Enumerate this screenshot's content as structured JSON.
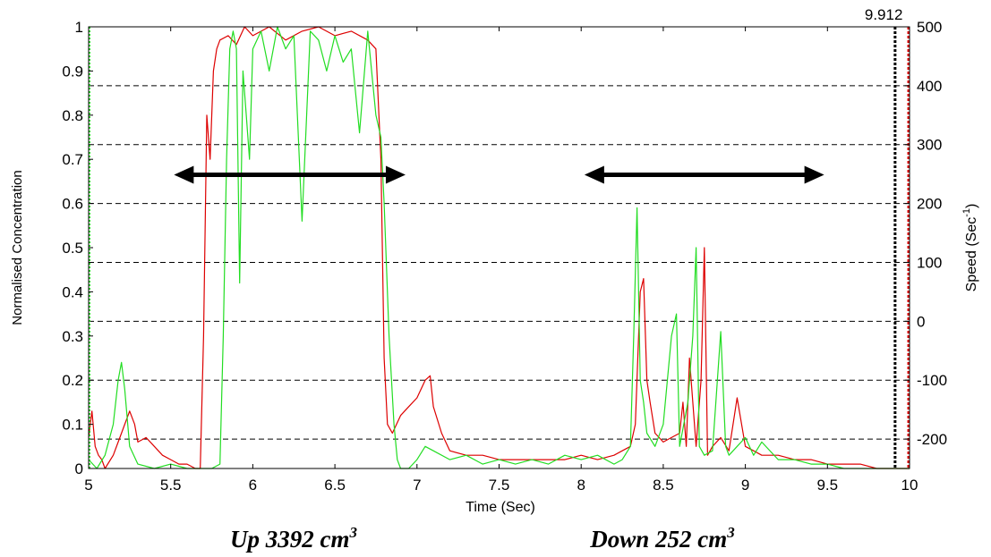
{
  "chart_data": {
    "type": "line",
    "xlabel": "Time (Sec)",
    "ylabel": "Normalised Concentration",
    "y2label": "Speed (Sec",
    "y2label_sup": "-1",
    "y2label_close": ")",
    "xlim": [
      5,
      10
    ],
    "ylim": [
      0,
      1
    ],
    "y2lim": [
      -250,
      500
    ],
    "grid": "horizontal dashed at right-axis ticks",
    "xticks": [
      "5",
      "5.5",
      "6",
      "6.5",
      "7",
      "7.5",
      "8",
      "8.5",
      "9",
      "9.5",
      "10"
    ],
    "yticks": [
      "0",
      "0.1",
      "0.2",
      "0.3",
      "0.4",
      "0.5",
      "0.6",
      "0.7",
      "0.8",
      "0.9",
      "1"
    ],
    "y2ticks": [
      "-200",
      "-100",
      "0",
      "100",
      "200",
      "300",
      "400",
      "500"
    ],
    "marker": {
      "x": 9.912,
      "label": "9.912"
    },
    "colors": {
      "series_red": "#dd0000",
      "series_green": "#22dd22",
      "marker": "#000000",
      "right_edge": "#dd0000"
    },
    "series": [
      {
        "color": "red",
        "x": [
          5.0,
          5.02,
          5.04,
          5.06,
          5.08,
          5.1,
          5.15,
          5.2,
          5.25,
          5.28,
          5.3,
          5.35,
          5.4,
          5.45,
          5.5,
          5.55,
          5.6,
          5.65,
          5.68,
          5.7,
          5.72,
          5.74,
          5.76,
          5.78,
          5.8,
          5.85,
          5.9,
          5.95,
          6.0,
          6.1,
          6.2,
          6.3,
          6.4,
          6.5,
          6.6,
          6.7,
          6.75,
          6.78,
          6.8,
          6.82,
          6.85,
          6.9,
          6.95,
          7.0,
          7.05,
          7.08,
          7.1,
          7.15,
          7.2,
          7.3,
          7.4,
          7.5,
          7.6,
          7.7,
          7.8,
          7.9,
          8.0,
          8.1,
          8.2,
          8.25,
          8.3,
          8.33,
          8.36,
          8.38,
          8.4,
          8.42,
          8.45,
          8.5,
          8.55,
          8.6,
          8.62,
          8.64,
          8.66,
          8.7,
          8.73,
          8.75,
          8.77,
          8.8,
          8.85,
          8.9,
          8.95,
          9.0,
          9.05,
          9.1,
          9.2,
          9.3,
          9.4,
          9.5,
          9.6,
          9.7,
          9.8,
          9.9,
          10.0
        ],
        "values": [
          0.07,
          0.13,
          0.05,
          0.03,
          0.02,
          0.0,
          0.03,
          0.08,
          0.13,
          0.1,
          0.06,
          0.07,
          0.05,
          0.03,
          0.02,
          0.01,
          0.01,
          0.0,
          0.0,
          0.3,
          0.8,
          0.7,
          0.9,
          0.95,
          0.97,
          0.98,
          0.96,
          1.0,
          0.98,
          1.0,
          0.97,
          0.99,
          1.0,
          0.98,
          0.99,
          0.97,
          0.95,
          0.7,
          0.25,
          0.1,
          0.08,
          0.12,
          0.14,
          0.16,
          0.2,
          0.21,
          0.14,
          0.08,
          0.04,
          0.03,
          0.03,
          0.02,
          0.02,
          0.02,
          0.02,
          0.02,
          0.03,
          0.02,
          0.03,
          0.04,
          0.05,
          0.1,
          0.4,
          0.43,
          0.2,
          0.15,
          0.08,
          0.06,
          0.07,
          0.08,
          0.15,
          0.05,
          0.25,
          0.05,
          0.2,
          0.5,
          0.03,
          0.05,
          0.07,
          0.04,
          0.16,
          0.05,
          0.04,
          0.03,
          0.03,
          0.02,
          0.02,
          0.01,
          0.01,
          0.01,
          0.0,
          0.0,
          0.0
        ]
      },
      {
        "color": "green",
        "x": [
          5.0,
          5.05,
          5.1,
          5.15,
          5.18,
          5.2,
          5.22,
          5.25,
          5.3,
          5.4,
          5.5,
          5.6,
          5.7,
          5.75,
          5.8,
          5.82,
          5.84,
          5.86,
          5.88,
          5.9,
          5.92,
          5.94,
          5.96,
          5.98,
          6.0,
          6.05,
          6.1,
          6.15,
          6.2,
          6.25,
          6.3,
          6.35,
          6.4,
          6.45,
          6.5,
          6.55,
          6.6,
          6.65,
          6.7,
          6.75,
          6.78,
          6.8,
          6.83,
          6.86,
          6.88,
          6.9,
          6.95,
          7.0,
          7.05,
          7.1,
          7.2,
          7.3,
          7.4,
          7.5,
          7.6,
          7.7,
          7.8,
          7.9,
          8.0,
          8.1,
          8.2,
          8.25,
          8.3,
          8.32,
          8.34,
          8.36,
          8.38,
          8.4,
          8.45,
          8.5,
          8.55,
          8.58,
          8.6,
          8.65,
          8.68,
          8.7,
          8.72,
          8.75,
          8.8,
          8.85,
          8.88,
          8.9,
          8.95,
          9.0,
          9.05,
          9.1,
          9.2,
          9.3,
          9.4,
          9.5,
          9.6,
          9.7,
          9.8,
          9.9,
          10.0
        ],
        "values": [
          0.02,
          0.0,
          0.03,
          0.1,
          0.2,
          0.24,
          0.18,
          0.05,
          0.01,
          0.0,
          0.01,
          0.0,
          0.0,
          0.0,
          0.01,
          0.3,
          0.7,
          0.95,
          0.99,
          0.95,
          0.42,
          0.9,
          0.8,
          0.7,
          0.95,
          0.99,
          0.9,
          1.0,
          0.95,
          0.98,
          0.56,
          0.99,
          0.97,
          0.9,
          0.98,
          0.92,
          0.95,
          0.76,
          0.99,
          0.8,
          0.75,
          0.6,
          0.3,
          0.1,
          0.02,
          0.0,
          0.0,
          0.02,
          0.05,
          0.04,
          0.02,
          0.03,
          0.01,
          0.02,
          0.01,
          0.02,
          0.01,
          0.03,
          0.02,
          0.03,
          0.01,
          0.02,
          0.05,
          0.3,
          0.59,
          0.2,
          0.15,
          0.08,
          0.05,
          0.1,
          0.3,
          0.35,
          0.05,
          0.15,
          0.3,
          0.5,
          0.05,
          0.03,
          0.04,
          0.31,
          0.05,
          0.03,
          0.05,
          0.07,
          0.03,
          0.06,
          0.02,
          0.02,
          0.01,
          0.01,
          0.0,
          0.0,
          0.0,
          0.0,
          0.0
        ]
      }
    ],
    "arrows": [
      {
        "x_start": 5.52,
        "x_end": 6.93,
        "y": 0.665
      },
      {
        "x_start": 8.02,
        "x_end": 9.48,
        "y": 0.665
      }
    ],
    "annotations": [
      {
        "text": "Up 3392 cm",
        "sup": "3"
      },
      {
        "text": "Down 252 cm",
        "sup": "3"
      }
    ]
  }
}
